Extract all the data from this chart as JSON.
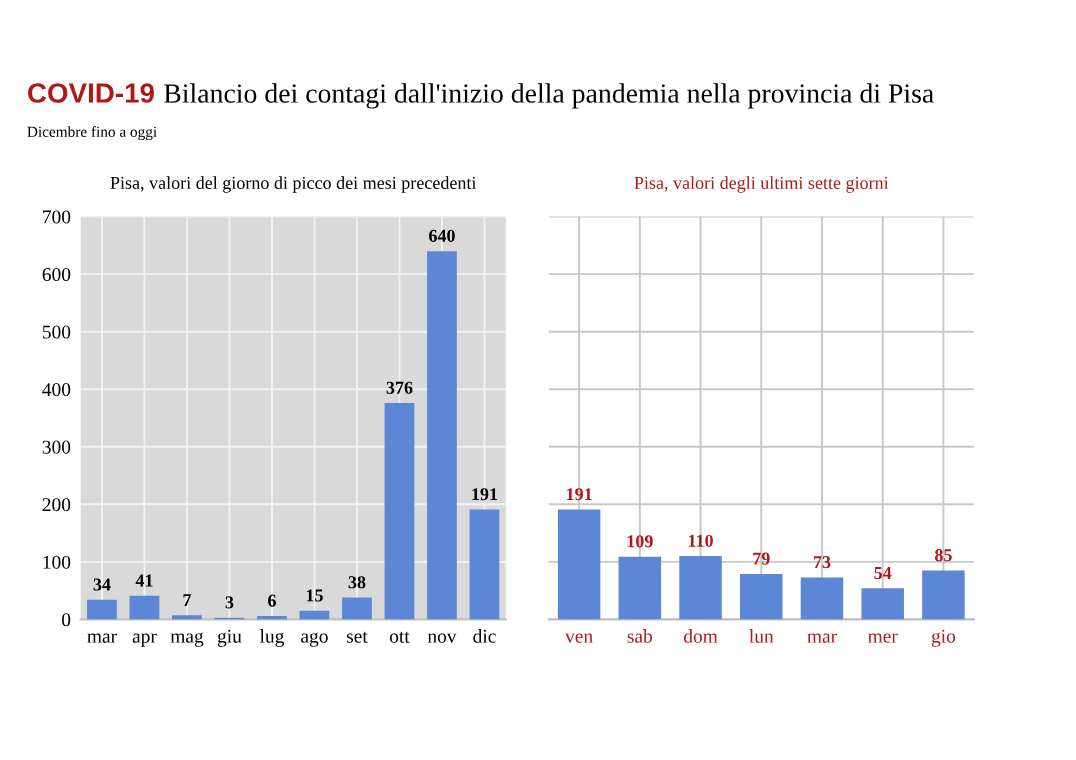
{
  "chart_data": [
    {
      "type": "bar",
      "title": "Pisa, valori del giorno di picco dei mesi precedenti",
      "annotations": [
        "COVID-19",
        "Bilancio dei contagi dall'inizio della pandemia nella provincia di Pisa",
        "Dicembre fino a oggi"
      ],
      "categories": [
        "mar",
        "apr",
        "mag",
        "giu",
        "lug",
        "ago",
        "set",
        "ott",
        "nov",
        "dic"
      ],
      "series": [
        {
          "color": "#5b87d6",
          "values": [
            34,
            41,
            7,
            3,
            6,
            15,
            38,
            376,
            640,
            191
          ]
        }
      ],
      "ylim": [
        0,
        700
      ],
      "yticks": [
        0,
        100,
        200,
        300,
        400,
        500,
        600,
        700
      ],
      "grid": true,
      "data_labels": true
    },
    {
      "type": "bar",
      "title": "Pisa, valori degli ultimi sette giorni",
      "categories": [
        "ven",
        "sab",
        "dom",
        "lun",
        "mar",
        "mer",
        "gio"
      ],
      "series": [
        {
          "color": "#5b87d6",
          "values": [
            191,
            109,
            110,
            79,
            73,
            54,
            85
          ]
        }
      ],
      "ylim": [
        0,
        700
      ],
      "yticks": [
        {
          "value": 0,
          "label": null
        },
        {
          "value": 100,
          "label": null
        },
        {
          "value": 200,
          "label": null
        },
        {
          "value": 300,
          "label": null
        },
        {
          "value": 400,
          "label": null
        },
        {
          "value": 500,
          "label": null
        },
        {
          "value": 600,
          "label": null
        },
        {
          "value": 700,
          "label": null
        }
      ],
      "tick_labels": "x",
      "grid": true,
      "data_labels": true
    }
  ]
}
